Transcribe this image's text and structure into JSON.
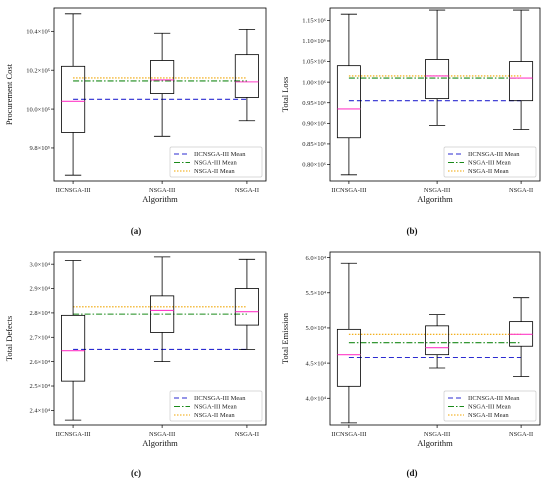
{
  "style": {
    "box_color": "#000000",
    "median_color": "#ff3cc8",
    "mean_colors": {
      "IICNSGA-III": "#2b2bd0",
      "NSGA-III": "#1a8a1a",
      "NSGA-II": "#f0a500"
    }
  },
  "chart_data": [
    {
      "type": "box",
      "caption": "(a)",
      "title": "",
      "xlabel": "Algorithm",
      "ylabel": "Procurement Cost",
      "categories": [
        "IICNSGA-III",
        "NSGA-III",
        "NSGA-II"
      ],
      "ylim": [
        9.63,
        10.52
      ],
      "yticks": [
        9.8,
        10.0,
        10.2,
        10.4
      ],
      "ytick_labels": [
        "9.8×10⁵",
        "10.0×10⁵",
        "10.2×10⁵",
        "10.4×10⁵"
      ],
      "boxes": [
        {
          "min": 9.66,
          "q1": 9.88,
          "median": 10.04,
          "q3": 10.22,
          "max": 10.49
        },
        {
          "min": 9.86,
          "q1": 10.08,
          "median": 10.15,
          "q3": 10.25,
          "max": 10.39
        },
        {
          "min": 9.94,
          "q1": 10.06,
          "median": 10.14,
          "q3": 10.28,
          "max": 10.41
        }
      ],
      "means": [
        {
          "name": "IICNSGA-III Mean",
          "value": 10.05,
          "dash": "5,3"
        },
        {
          "name": "NSGA-III Mean",
          "value": 10.145,
          "dash": "6,2,1.5,2"
        },
        {
          "name": "NSGA-II Mean",
          "value": 10.16,
          "dash": "1.5,1.5"
        }
      ],
      "legend": [
        "IICNSGA-III Mean",
        "NSGA-III Mean",
        "NSGA-II Mean"
      ],
      "legend_loc": "lower-right"
    },
    {
      "type": "box",
      "caption": "(b)",
      "title": "",
      "xlabel": "Algorithm",
      "ylabel": "Total Loss",
      "categories": [
        "IICNSGA-III",
        "NSGA-III",
        "NSGA-II"
      ],
      "ylim": [
        0.76,
        1.18
      ],
      "yticks": [
        0.8,
        0.85,
        0.9,
        0.95,
        1.0,
        1.05,
        1.1,
        1.15
      ],
      "ytick_labels": [
        "0.80×10⁶",
        "0.85×10⁶",
        "0.90×10⁶",
        "0.95×10⁶",
        "1.00×10⁶",
        "1.05×10⁶",
        "1.10×10⁶",
        "1.15×10⁶"
      ],
      "boxes": [
        {
          "min": 0.775,
          "q1": 0.865,
          "median": 0.935,
          "q3": 1.04,
          "max": 1.165
        },
        {
          "min": 0.895,
          "q1": 0.96,
          "median": 1.015,
          "q3": 1.055,
          "max": 1.175
        },
        {
          "min": 0.885,
          "q1": 0.955,
          "median": 1.01,
          "q3": 1.05,
          "max": 1.175
        }
      ],
      "means": [
        {
          "name": "IICNSGA-III Mean",
          "value": 0.955,
          "dash": "5,3"
        },
        {
          "name": "NSGA-III Mean",
          "value": 1.01,
          "dash": "6,2,1.5,2"
        },
        {
          "name": "NSGA-II Mean",
          "value": 1.015,
          "dash": "1.5,1.5"
        }
      ],
      "legend": [
        "IICNSGA-III Mean",
        "NSGA-III Mean",
        "NSGA-II Mean"
      ],
      "legend_loc": "lower-right"
    },
    {
      "type": "box",
      "caption": "(c)",
      "title": "",
      "xlabel": "Algorithm",
      "ylabel": "Total Defects",
      "categories": [
        "IICNSGA-III",
        "NSGA-III",
        "NSGA-II"
      ],
      "ylim": [
        2.34,
        3.05
      ],
      "yticks": [
        2.4,
        2.5,
        2.6,
        2.7,
        2.8,
        2.9,
        3.0
      ],
      "ytick_labels": [
        "2.4×10⁴",
        "2.5×10⁴",
        "2.6×10⁴",
        "2.7×10⁴",
        "2.8×10⁴",
        "2.9×10⁴",
        "3.0×10⁴"
      ],
      "boxes": [
        {
          "min": 2.36,
          "q1": 2.52,
          "median": 2.645,
          "q3": 2.79,
          "max": 3.015
        },
        {
          "min": 2.6,
          "q1": 2.72,
          "median": 2.81,
          "q3": 2.87,
          "max": 3.03
        },
        {
          "min": 2.65,
          "q1": 2.75,
          "median": 2.805,
          "q3": 2.9,
          "max": 3.02
        }
      ],
      "means": [
        {
          "name": "IICNSGA-III Mean",
          "value": 2.65,
          "dash": "5,3"
        },
        {
          "name": "NSGA-III Mean",
          "value": 2.795,
          "dash": "6,2,1.5,2"
        },
        {
          "name": "NSGA-II Mean",
          "value": 2.825,
          "dash": "1.5,1.5"
        }
      ],
      "legend": [
        "IICNSGA-III Mean",
        "NSGA-III Mean",
        "NSGA-II Mean"
      ],
      "legend_loc": "lower-right"
    },
    {
      "type": "box",
      "caption": "(d)",
      "title": "",
      "xlabel": "Algorithm",
      "ylabel": "Total Emission",
      "categories": [
        "IICNSGA-III",
        "NSGA-III",
        "NSGA-II"
      ],
      "ylim": [
        3.62,
        6.08
      ],
      "yticks": [
        4.0,
        4.5,
        5.0,
        5.5,
        6.0
      ],
      "ytick_labels": [
        "4.0×10⁴",
        "4.5×10⁴",
        "5.0×10⁴",
        "5.5×10⁴",
        "6.0×10⁴"
      ],
      "boxes": [
        {
          "min": 3.65,
          "q1": 4.17,
          "median": 4.62,
          "q3": 4.98,
          "max": 5.92
        },
        {
          "min": 4.43,
          "q1": 4.62,
          "median": 4.72,
          "q3": 5.03,
          "max": 5.19
        },
        {
          "min": 4.31,
          "q1": 4.74,
          "median": 4.91,
          "q3": 5.09,
          "max": 5.43
        }
      ],
      "means": [
        {
          "name": "IICNSGA-III Mean",
          "value": 4.58,
          "dash": "5,3"
        },
        {
          "name": "NSGA-III Mean",
          "value": 4.79,
          "dash": "6,2,1.5,2"
        },
        {
          "name": "NSGA-II Mean",
          "value": 4.91,
          "dash": "1.5,1.5"
        }
      ],
      "legend": [
        "IICNSGA-III Mean",
        "NSGA-III Mean",
        "NSGA-II Mean"
      ],
      "legend_loc": "lower-right"
    }
  ]
}
